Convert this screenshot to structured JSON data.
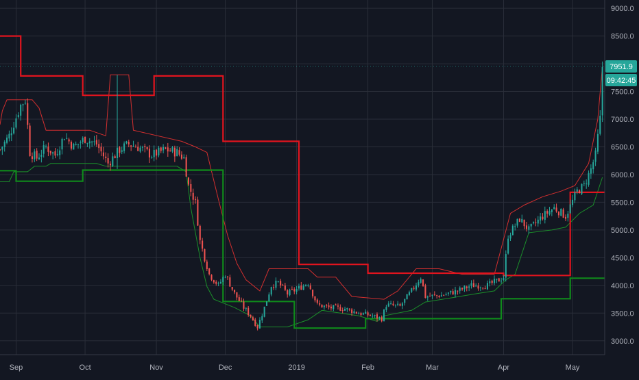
{
  "chart_data": {
    "type": "candlestick",
    "title": "",
    "xlabel": "",
    "ylabel": "",
    "ylim": [
      2750,
      9150
    ],
    "y_ticks": [
      3000,
      3500,
      4000,
      4500,
      5000,
      5500,
      6000,
      6500,
      7000,
      7500,
      8000,
      8500,
      9000
    ],
    "y_tick_labels": [
      "3000.0",
      "3500.0",
      "4000.0",
      "4500.0",
      "5000.0",
      "5500.0",
      "6000.0",
      "6500.0",
      "7000.0",
      "7500.0",
      "8000.0",
      "8500.0",
      "9000.0"
    ],
    "x_range": [
      "2018-08-25",
      "2019-05-15"
    ],
    "x_ticks": [
      {
        "date": "2018-09-01",
        "label": "Sep"
      },
      {
        "date": "2018-10-01",
        "label": "Oct"
      },
      {
        "date": "2018-11-01",
        "label": "Nov"
      },
      {
        "date": "2018-12-01",
        "label": "Dec"
      },
      {
        "date": "2019-01-01",
        "label": "2019"
      },
      {
        "date": "2019-02-01",
        "label": "Feb"
      },
      {
        "date": "2019-03-01",
        "label": "Mar"
      },
      {
        "date": "2019-04-01",
        "label": "Apr"
      },
      {
        "date": "2019-05-01",
        "label": "May"
      }
    ],
    "grid": true,
    "colors": {
      "background": "#131722",
      "grid": "#2a2e39",
      "up": "#26a69a",
      "down": "#ef5350",
      "upper_band": "#e0141e",
      "lower_band": "#0f8a1b",
      "inner_upper": "#d32f2f",
      "inner_lower": "#1b8f2a",
      "axis_text": "#b2b5be",
      "label_bg": "#26a69a"
    },
    "price_keypoints": [
      [
        "2018-08-25",
        6450
      ],
      [
        "2018-08-29",
        6700
      ],
      [
        "2018-09-03",
        7250
      ],
      [
        "2018-09-05",
        7350
      ],
      [
        "2018-09-07",
        6400
      ],
      [
        "2018-09-10",
        6300
      ],
      [
        "2018-09-14",
        6500
      ],
      [
        "2018-09-18",
        6350
      ],
      [
        "2018-09-22",
        6700
      ],
      [
        "2018-09-26",
        6500
      ],
      [
        "2018-10-01",
        6650
      ],
      [
        "2018-10-06",
        6550
      ],
      [
        "2018-10-11",
        6200
      ],
      [
        "2018-10-16",
        6450
      ],
      [
        "2018-10-20",
        6550
      ],
      [
        "2018-10-25",
        6480
      ],
      [
        "2018-10-30",
        6350
      ],
      [
        "2018-11-05",
        6450
      ],
      [
        "2018-11-10",
        6400
      ],
      [
        "2018-11-13",
        6300
      ],
      [
        "2018-11-15",
        5800
      ],
      [
        "2018-11-18",
        5500
      ],
      [
        "2018-11-20",
        4800
      ],
      [
        "2018-11-24",
        4200
      ],
      [
        "2018-11-28",
        4000
      ],
      [
        "2018-12-01",
        4200
      ],
      [
        "2018-12-05",
        3850
      ],
      [
        "2018-12-09",
        3600
      ],
      [
        "2018-12-12",
        3450
      ],
      [
        "2018-12-15",
        3250
      ],
      [
        "2018-12-18",
        3600
      ],
      [
        "2018-12-21",
        4000
      ],
      [
        "2018-12-24",
        4050
      ],
      [
        "2018-12-28",
        3850
      ],
      [
        "2019-01-02",
        3950
      ],
      [
        "2019-01-06",
        4050
      ],
      [
        "2019-01-10",
        3650
      ],
      [
        "2019-01-15",
        3600
      ],
      [
        "2019-01-22",
        3580
      ],
      [
        "2019-01-28",
        3500
      ],
      [
        "2019-02-03",
        3450
      ],
      [
        "2019-02-07",
        3400
      ],
      [
        "2019-02-09",
        3650
      ],
      [
        "2019-02-15",
        3620
      ],
      [
        "2019-02-20",
        3900
      ],
      [
        "2019-02-24",
        4150
      ],
      [
        "2019-02-26",
        3800
      ],
      [
        "2019-03-05",
        3820
      ],
      [
        "2019-03-12",
        3900
      ],
      [
        "2019-03-18",
        4000
      ],
      [
        "2019-03-25",
        4000
      ],
      [
        "2019-03-30",
        4100
      ],
      [
        "2019-04-01",
        4150
      ],
      [
        "2019-04-03",
        4900
      ],
      [
        "2019-04-08",
        5200
      ],
      [
        "2019-04-12",
        5000
      ],
      [
        "2019-04-18",
        5250
      ],
      [
        "2019-04-23",
        5400
      ],
      [
        "2019-04-28",
        5250
      ],
      [
        "2019-05-03",
        5700
      ],
      [
        "2019-05-06",
        5800
      ],
      [
        "2019-05-09",
        6100
      ],
      [
        "2019-05-11",
        6350
      ],
      [
        "2019-05-13",
        7000
      ],
      [
        "2019-05-14",
        7950
      ]
    ],
    "outer_upper_band": [
      [
        "2018-08-25",
        8500
      ],
      [
        "2018-09-03",
        8500
      ],
      [
        "2018-09-03",
        7780
      ],
      [
        "2018-09-30",
        7780
      ],
      [
        "2018-09-30",
        7430
      ],
      [
        "2018-10-31",
        7430
      ],
      [
        "2018-10-31",
        7780
      ],
      [
        "2018-11-30",
        7780
      ],
      [
        "2018-11-30",
        6600
      ],
      [
        "2019-01-02",
        6600
      ],
      [
        "2019-01-02",
        4380
      ],
      [
        "2019-02-01",
        4380
      ],
      [
        "2019-02-01",
        4220
      ],
      [
        "2019-04-01",
        4220
      ],
      [
        "2019-04-01",
        4180
      ],
      [
        "2019-04-30",
        4180
      ],
      [
        "2019-04-30",
        5680
      ],
      [
        "2019-05-15",
        5680
      ]
    ],
    "outer_lower_band": [
      [
        "2018-08-25",
        6070
      ],
      [
        "2018-09-01",
        6070
      ],
      [
        "2018-09-01",
        5880
      ],
      [
        "2018-09-30",
        5880
      ],
      [
        "2018-09-30",
        6080
      ],
      [
        "2018-11-30",
        6080
      ],
      [
        "2018-11-30",
        3710
      ],
      [
        "2018-12-31",
        3710
      ],
      [
        "2018-12-31",
        3230
      ],
      [
        "2019-01-31",
        3230
      ],
      [
        "2019-01-31",
        3400
      ],
      [
        "2019-03-31",
        3400
      ],
      [
        "2019-03-31",
        3760
      ],
      [
        "2019-04-30",
        3760
      ],
      [
        "2019-04-30",
        4130
      ],
      [
        "2019-05-15",
        4130
      ]
    ],
    "inner_upper_band": [
      [
        "2018-08-25",
        6900
      ],
      [
        "2018-08-26",
        7150
      ],
      [
        "2018-08-28",
        7350
      ],
      [
        "2018-09-08",
        7350
      ],
      [
        "2018-09-11",
        7200
      ],
      [
        "2018-09-14",
        6800
      ],
      [
        "2018-10-03",
        6800
      ],
      [
        "2018-10-10",
        6700
      ],
      [
        "2018-10-12",
        7800
      ],
      [
        "2018-10-20",
        7800
      ],
      [
        "2018-10-22",
        6800
      ],
      [
        "2018-11-12",
        6600
      ],
      [
        "2018-11-18",
        6500
      ],
      [
        "2018-11-23",
        6400
      ],
      [
        "2018-11-28",
        5550
      ],
      [
        "2018-12-02",
        4900
      ],
      [
        "2018-12-06",
        4400
      ],
      [
        "2018-12-10",
        4100
      ],
      [
        "2018-12-16",
        3900
      ],
      [
        "2018-12-20",
        4300
      ],
      [
        "2018-12-26",
        4300
      ],
      [
        "2019-01-06",
        4300
      ],
      [
        "2019-01-10",
        4150
      ],
      [
        "2019-01-18",
        4150
      ],
      [
        "2019-01-25",
        3800
      ],
      [
        "2019-02-08",
        3750
      ],
      [
        "2019-02-14",
        3900
      ],
      [
        "2019-02-22",
        4300
      ],
      [
        "2019-03-04",
        4300
      ],
      [
        "2019-03-14",
        4200
      ],
      [
        "2019-03-28",
        4200
      ],
      [
        "2019-04-04",
        5300
      ],
      [
        "2019-04-10",
        5450
      ],
      [
        "2019-04-18",
        5600
      ],
      [
        "2019-04-26",
        5700
      ],
      [
        "2019-05-02",
        5800
      ],
      [
        "2019-05-08",
        6200
      ],
      [
        "2019-05-12",
        7000
      ],
      [
        "2019-05-14",
        7950
      ]
    ],
    "inner_lower_band": [
      [
        "2018-08-25",
        5870
      ],
      [
        "2018-08-29",
        5870
      ],
      [
        "2018-08-31",
        6050
      ],
      [
        "2018-09-06",
        6050
      ],
      [
        "2018-09-09",
        6150
      ],
      [
        "2018-09-14",
        6150
      ],
      [
        "2018-09-16",
        6200
      ],
      [
        "2018-10-06",
        6200
      ],
      [
        "2018-10-10",
        6150
      ],
      [
        "2018-11-10",
        6150
      ],
      [
        "2018-11-14",
        6050
      ],
      [
        "2018-11-16",
        5400
      ],
      [
        "2018-11-20",
        4500
      ],
      [
        "2018-11-23",
        3980
      ],
      [
        "2018-11-26",
        3750
      ],
      [
        "2018-12-05",
        3600
      ],
      [
        "2018-12-12",
        3450
      ],
      [
        "2018-12-16",
        3250
      ],
      [
        "2018-12-28",
        3250
      ],
      [
        "2019-01-06",
        3380
      ],
      [
        "2019-01-12",
        3550
      ],
      [
        "2019-01-20",
        3500
      ],
      [
        "2019-01-28",
        3450
      ],
      [
        "2019-02-05",
        3350
      ],
      [
        "2019-02-08",
        3450
      ],
      [
        "2019-02-20",
        3550
      ],
      [
        "2019-02-26",
        3700
      ],
      [
        "2019-03-10",
        3780
      ],
      [
        "2019-03-20",
        3850
      ],
      [
        "2019-03-28",
        3900
      ],
      [
        "2019-04-02",
        4100
      ],
      [
        "2019-04-06",
        4200
      ],
      [
        "2019-04-12",
        4950
      ],
      [
        "2019-04-22",
        5000
      ],
      [
        "2019-04-28",
        5050
      ],
      [
        "2019-05-04",
        5300
      ],
      [
        "2019-05-10",
        5450
      ],
      [
        "2019-05-14",
        5950
      ]
    ],
    "spike": {
      "date": "2018-10-15",
      "high": 7800,
      "low": 6100
    },
    "last_price": {
      "value": 7951.9,
      "label": "7951.9"
    },
    "countdown": {
      "label": "09:42:45"
    }
  }
}
